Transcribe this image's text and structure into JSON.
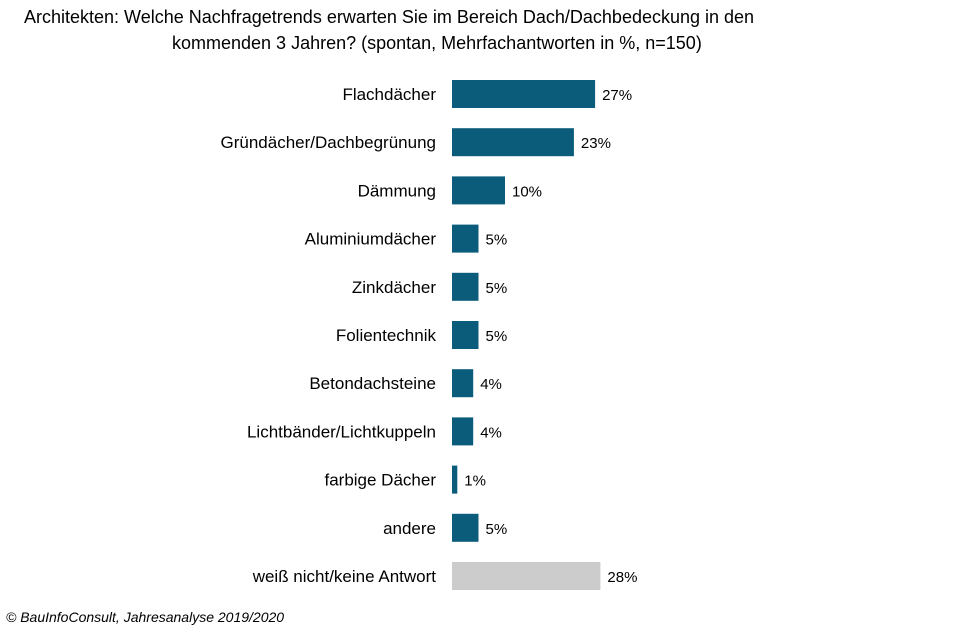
{
  "chart_data": {
    "type": "bar",
    "orientation": "horizontal",
    "title_line1": "Architekten: Welche Nachfragetrends erwarten Sie im Bereich Dach/Dachbedeckung in den",
    "title_line2": "kommenden 3 Jahren? (spontan, Mehrfachantworten in %, n=150)",
    "categories": [
      "Flachdächer",
      "Gründächer/Dachbegrünung",
      "Dämmung",
      "Aluminiumdächer",
      "Zinkdächer",
      "Folientechnik",
      "Betondachsteine",
      "Lichtbänder/Lichtkuppeln",
      "farbige Dächer",
      "andere",
      "weiß nicht/keine Antwort"
    ],
    "values": [
      27,
      23,
      10,
      5,
      5,
      5,
      4,
      4,
      1,
      5,
      28
    ],
    "value_labels": [
      "27%",
      "23%",
      "10%",
      "5%",
      "5%",
      "5%",
      "4%",
      "4%",
      "1%",
      "5%",
      "28%"
    ],
    "colors": {
      "main": "#0b5b7a",
      "last": "#cccccc"
    },
    "grid": false,
    "legend": "none"
  },
  "footer": "© BauInfoConsult, Jahresanalyse 2019/2020"
}
